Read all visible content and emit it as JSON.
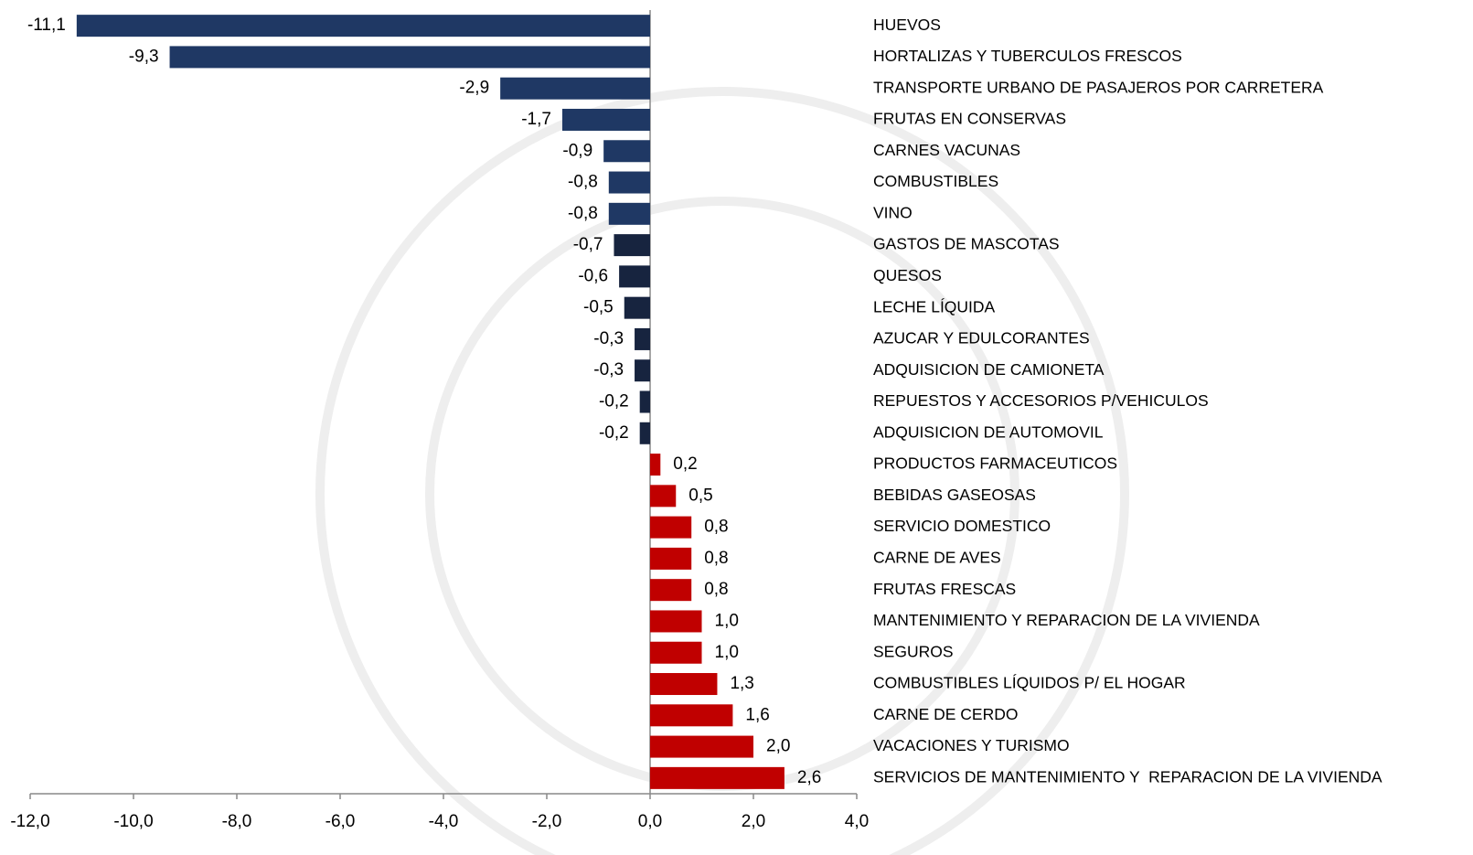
{
  "chart_data": {
    "type": "bar",
    "orientation": "horizontal",
    "categories": [
      "HUEVOS",
      "HORTALIZAS Y TUBERCULOS FRESCOS",
      "TRANSPORTE URBANO DE PASAJEROS POR CARRETERA",
      "FRUTAS EN CONSERVAS",
      "CARNES VACUNAS",
      "COMBUSTIBLES",
      "VINO",
      "GASTOS DE MASCOTAS",
      "QUESOS",
      "LECHE LÍQUIDA",
      "AZUCAR Y EDULCORANTES",
      "ADQUISICION DE CAMIONETA",
      "REPUESTOS Y ACCESORIOS P/VEHICULOS",
      "ADQUISICION DE AUTOMOVIL",
      "PRODUCTOS FARMACEUTICOS",
      "BEBIDAS GASEOSAS",
      "SERVICIO DOMESTICO",
      "CARNE DE AVES",
      "FRUTAS FRESCAS",
      "MANTENIMIENTO Y REPARACION DE LA VIVIENDA",
      "SEGUROS",
      "COMBUSTIBLES LÍQUIDOS P/ EL HOGAR",
      "CARNE DE CERDO",
      "VACACIONES Y TURISMO",
      "SERVICIOS DE MANTENIMIENTO Y  REPARACION DE LA VIVIENDA"
    ],
    "values": [
      -11.1,
      -9.3,
      -2.9,
      -1.7,
      -0.9,
      -0.8,
      -0.8,
      -0.7,
      -0.6,
      -0.5,
      -0.3,
      -0.3,
      -0.2,
      -0.2,
      0.2,
      0.5,
      0.8,
      0.8,
      0.8,
      1.0,
      1.0,
      1.3,
      1.6,
      2.0,
      2.6
    ],
    "value_labels": [
      "-11,1",
      "-9,3",
      "-2,9",
      "-1,7",
      "-0,9",
      "-0,8",
      "-0,8",
      "-0,7",
      "-0,6",
      "-0,5",
      "-0,3",
      "-0,3",
      "-0,2",
      "-0,2",
      "0,2",
      "0,5",
      "0,8",
      "0,8",
      "0,8",
      "1,0",
      "1,0",
      "1,3",
      "1,6",
      "2,0",
      "2,6"
    ],
    "colors": [
      "#1f3864",
      "#1f3864",
      "#1f3864",
      "#1f3864",
      "#1f3864",
      "#1f3864",
      "#1f3864",
      "#17243f",
      "#17243f",
      "#17243f",
      "#17243f",
      "#17243f",
      "#17243f",
      "#17243f",
      "#c00000",
      "#c00000",
      "#c00000",
      "#c00000",
      "#c00000",
      "#c00000",
      "#c00000",
      "#c00000",
      "#c00000",
      "#c00000",
      "#c00000"
    ],
    "xlim": [
      -12,
      4
    ],
    "xticks": [
      {
        "value": -12,
        "label": "-12,0"
      },
      {
        "value": -10,
        "label": "-10,0"
      },
      {
        "value": -8,
        "label": "-8,0"
      },
      {
        "value": -6,
        "label": "-6,0"
      },
      {
        "value": -4,
        "label": "-4,0"
      },
      {
        "value": -2,
        "label": "-2,0"
      },
      {
        "value": 0,
        "label": "0,0"
      },
      {
        "value": 2,
        "label": "2,0"
      },
      {
        "value": 4,
        "label": "4,0"
      }
    ]
  }
}
